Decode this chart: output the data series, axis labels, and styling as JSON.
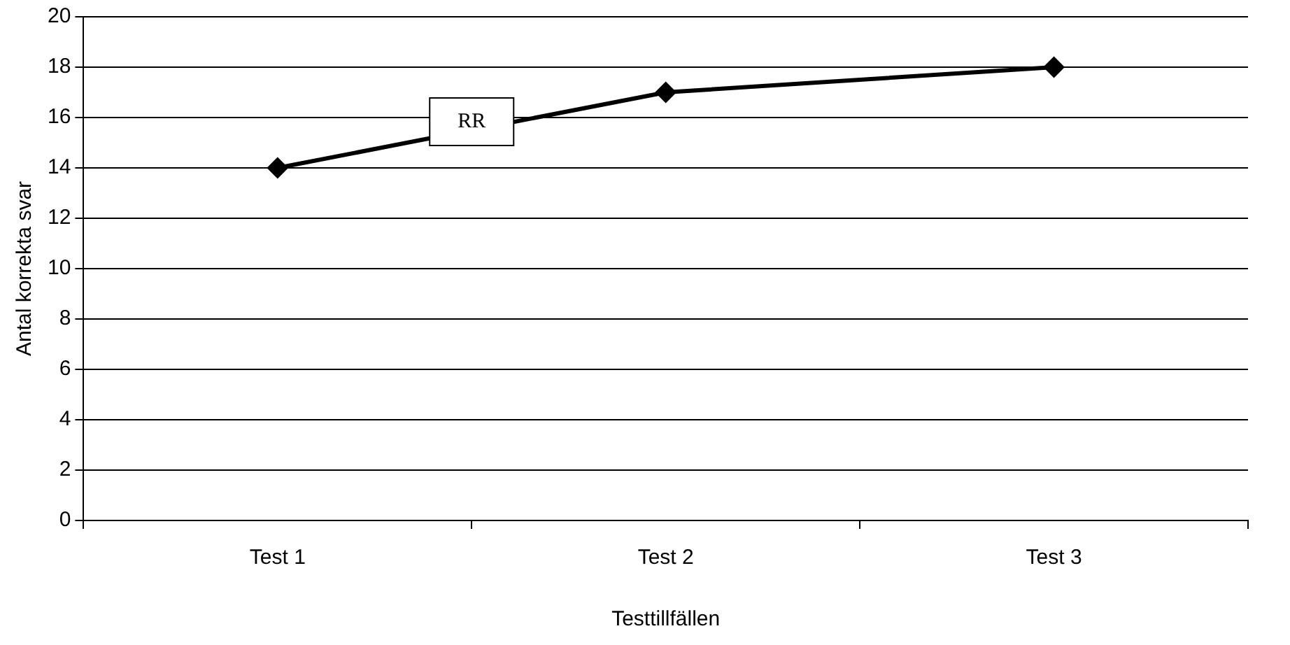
{
  "chart_data": {
    "type": "line",
    "xlabel": "Testtillfällen",
    "ylabel": "Antal korrekta svar",
    "categories": [
      "Test 1",
      "Test 2",
      "Test 3"
    ],
    "series": [
      {
        "name": "RR",
        "color": "#000000",
        "values": [
          14,
          17,
          18
        ]
      }
    ],
    "ylim": [
      0,
      20
    ],
    "yticks": [
      0,
      2,
      4,
      6,
      8,
      10,
      12,
      14,
      16,
      18,
      20
    ],
    "grid": "y",
    "legend": false,
    "marker": "diamond",
    "line_style": "solid"
  }
}
